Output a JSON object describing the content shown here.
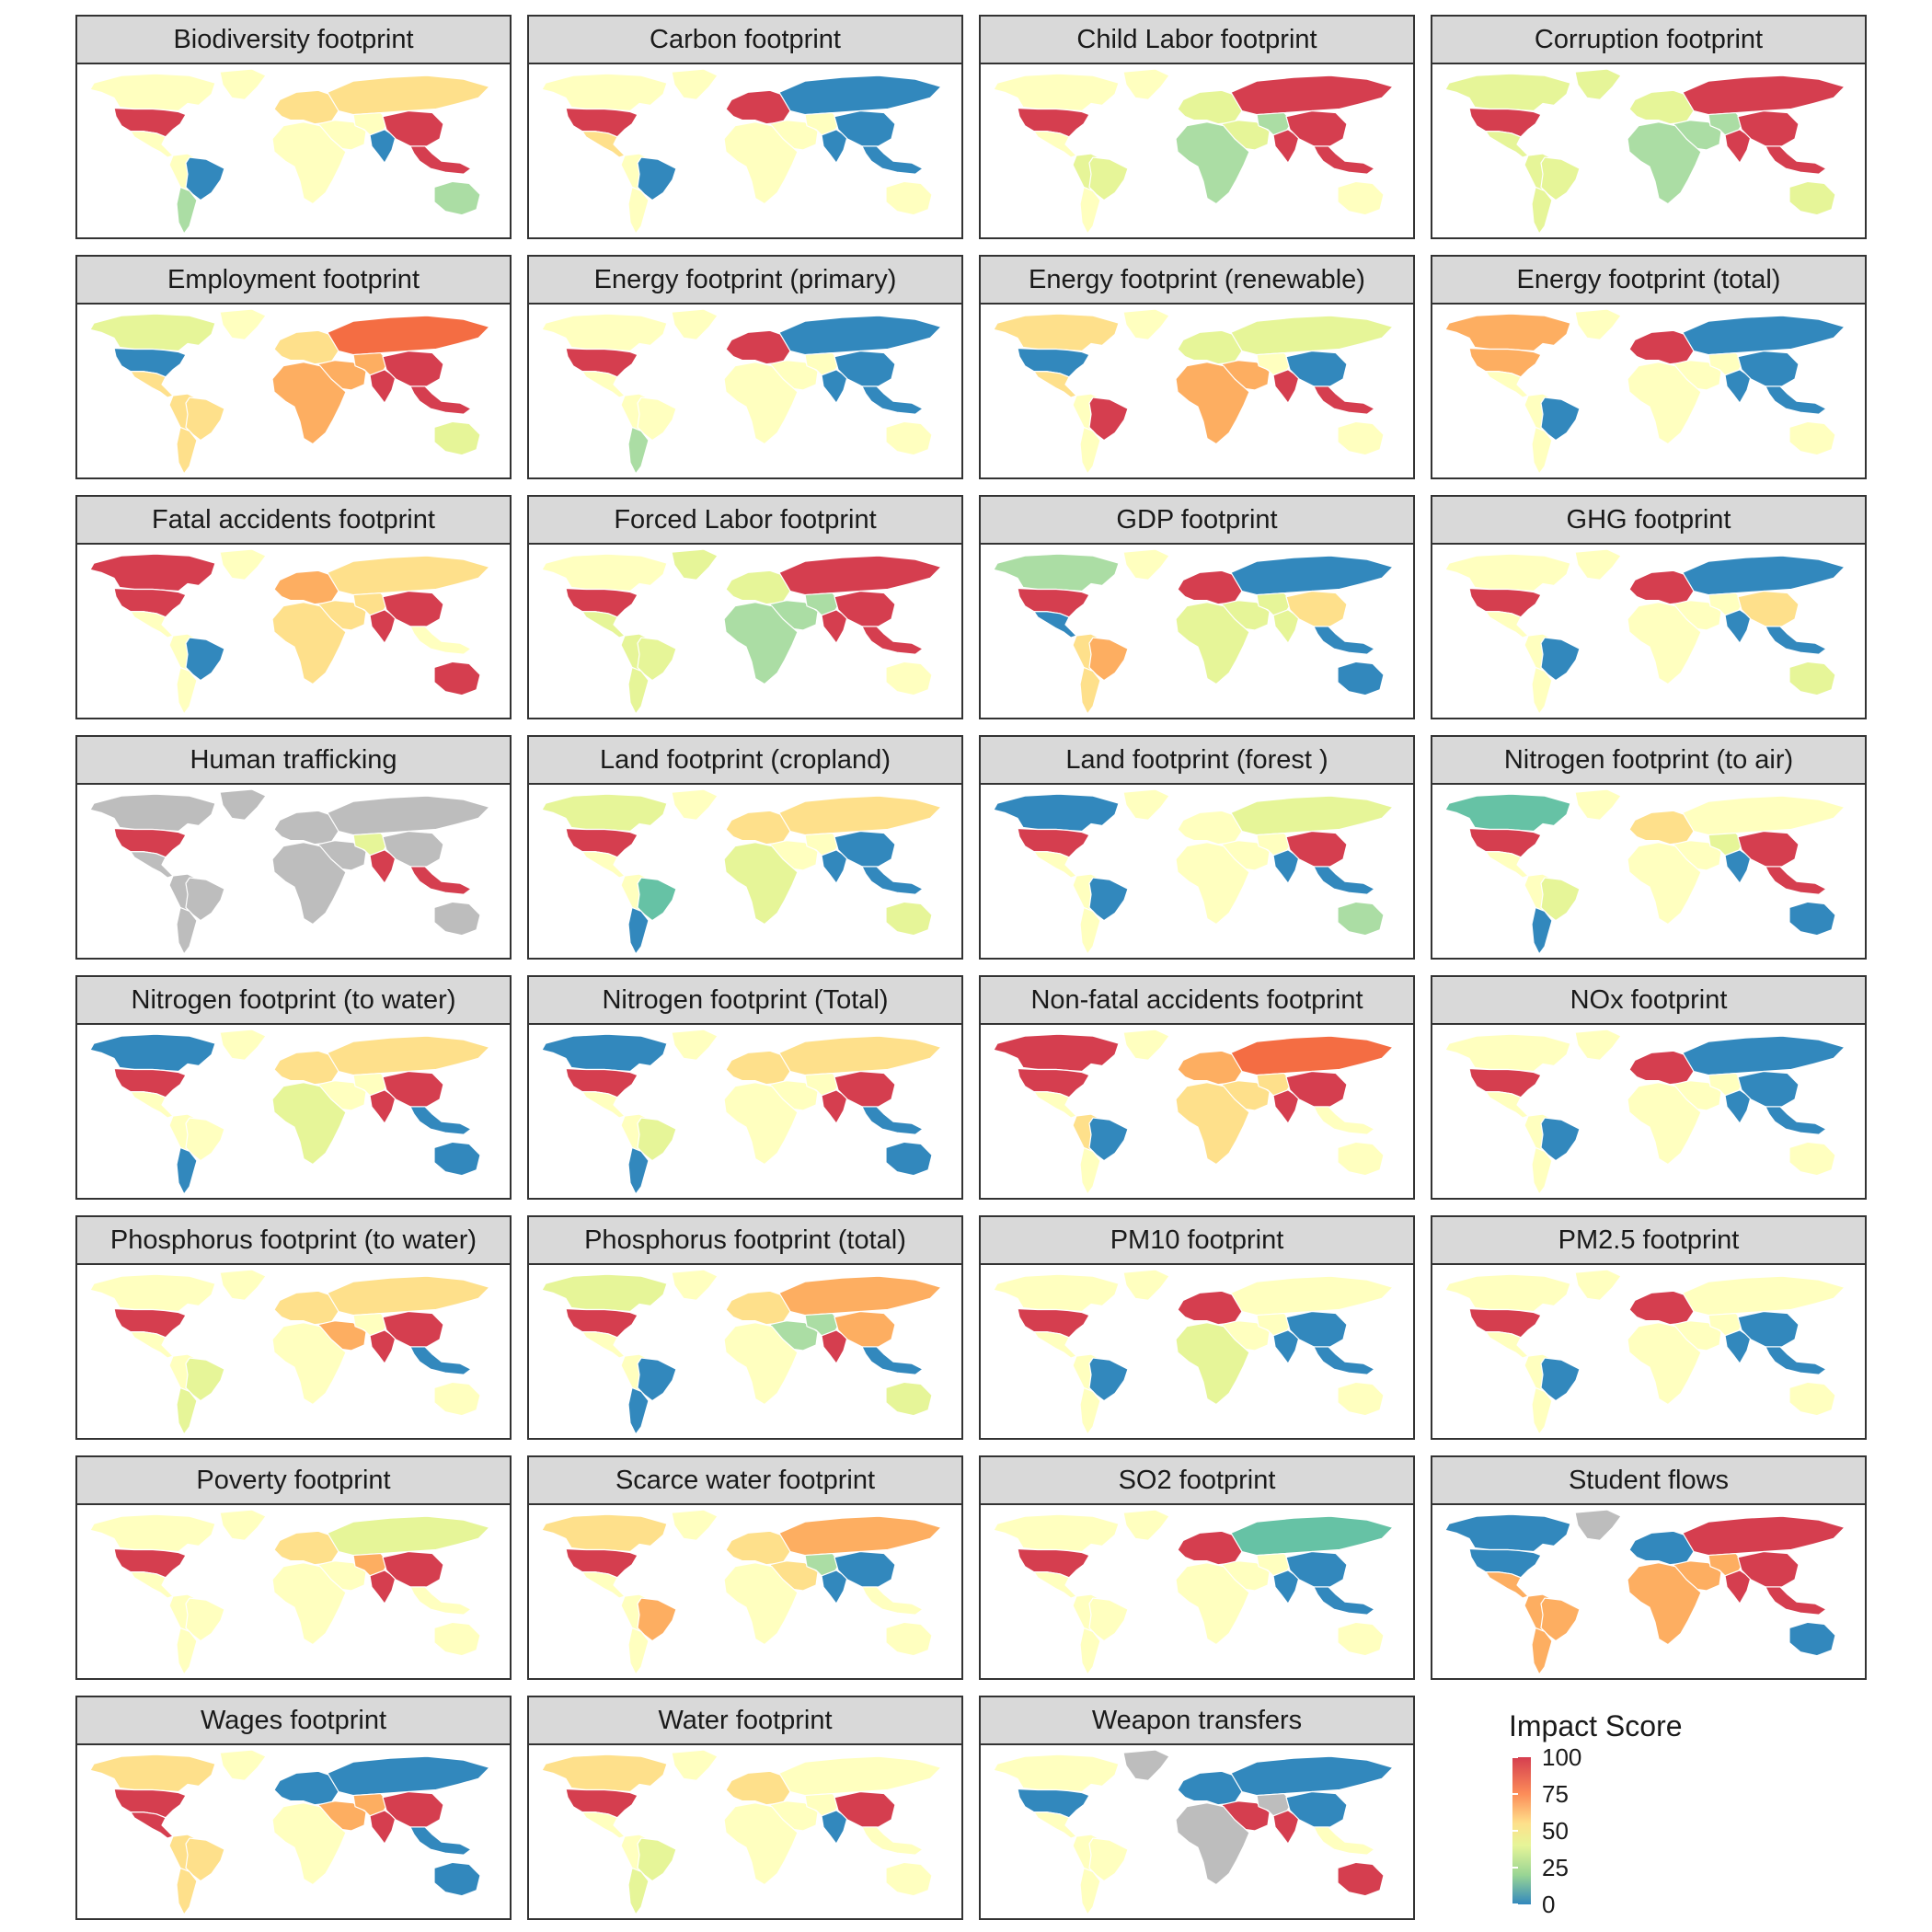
{
  "colors": {
    "red": "#d53e4f",
    "orange_red": "#f46d43",
    "orange": "#fdae61",
    "light_orange": "#fee08b",
    "cream": "#ffffbf",
    "light_green": "#e6f598",
    "green": "#abdda4",
    "teal": "#66c2a5",
    "blue": "#3288bd",
    "grey": "#bdbdbd"
  },
  "panels": [
    {
      "title": "Biodiversity footprint",
      "regions": {
        "north_america": "cream",
        "usa": "red",
        "central_america": "cream",
        "south_america": "cream",
        "brazil": "blue",
        "argentina": "green",
        "europe": "light_orange",
        "russia": "light_orange",
        "middle_east": "cream",
        "africa": "cream",
        "south_asia": "cream",
        "india": "blue",
        "china": "red",
        "southeast_asia": "red",
        "australia": "green",
        "greenland": "cream"
      }
    },
    {
      "title": "Carbon footprint",
      "regions": {
        "north_america": "cream",
        "usa": "red",
        "central_america": "light_orange",
        "south_america": "cream",
        "brazil": "blue",
        "argentina": "cream",
        "europe": "red",
        "russia": "blue",
        "middle_east": "cream",
        "africa": "cream",
        "south_asia": "cream",
        "india": "blue",
        "china": "blue",
        "southeast_asia": "blue",
        "australia": "cream",
        "greenland": "cream"
      }
    },
    {
      "title": "Child Labor footprint",
      "regions": {
        "north_america": "cream",
        "usa": "red",
        "central_america": "cream",
        "south_america": "light_green",
        "brazil": "light_green",
        "argentina": "cream",
        "europe": "light_green",
        "russia": "red",
        "middle_east": "light_green",
        "africa": "green",
        "south_asia": "green",
        "india": "red",
        "china": "red",
        "southeast_asia": "red",
        "australia": "cream",
        "greenland": "cream"
      }
    },
    {
      "title": "Corruption footprint",
      "regions": {
        "north_america": "light_green",
        "usa": "red",
        "central_america": "light_green",
        "south_america": "light_green",
        "brazil": "light_green",
        "argentina": "light_green",
        "europe": "light_green",
        "russia": "red",
        "middle_east": "green",
        "africa": "green",
        "south_asia": "green",
        "india": "red",
        "china": "red",
        "southeast_asia": "red",
        "australia": "light_green",
        "greenland": "light_green"
      }
    },
    {
      "title": "Employment footprint",
      "regions": {
        "north_america": "light_green",
        "usa": "blue",
        "central_america": "light_orange",
        "south_america": "light_orange",
        "brazil": "light_orange",
        "argentina": "light_orange",
        "europe": "light_orange",
        "russia": "orange_red",
        "middle_east": "orange",
        "africa": "orange",
        "south_asia": "orange",
        "india": "red",
        "china": "red",
        "southeast_asia": "red",
        "australia": "light_green",
        "greenland": "cream"
      }
    },
    {
      "title": "Energy footprint (primary)",
      "regions": {
        "north_america": "cream",
        "usa": "red",
        "central_america": "cream",
        "south_america": "cream",
        "brazil": "cream",
        "argentina": "green",
        "europe": "red",
        "russia": "blue",
        "middle_east": "cream",
        "africa": "cream",
        "south_asia": "cream",
        "india": "blue",
        "china": "blue",
        "southeast_asia": "blue",
        "australia": "cream",
        "greenland": "cream"
      }
    },
    {
      "title": "Energy footprint (renewable)",
      "regions": {
        "north_america": "light_orange",
        "usa": "blue",
        "central_america": "light_orange",
        "south_america": "cream",
        "brazil": "red",
        "argentina": "cream",
        "europe": "light_green",
        "russia": "light_green",
        "middle_east": "orange",
        "africa": "orange",
        "south_asia": "cream",
        "india": "red",
        "china": "blue",
        "southeast_asia": "red",
        "australia": "cream",
        "greenland": "cream"
      }
    },
    {
      "title": "Energy footprint (total)",
      "regions": {
        "north_america": "orange",
        "usa": "orange",
        "central_america": "cream",
        "south_america": "cream",
        "brazil": "blue",
        "argentina": "cream",
        "europe": "red",
        "russia": "blue",
        "middle_east": "cream",
        "africa": "cream",
        "south_asia": "cream",
        "india": "blue",
        "china": "blue",
        "southeast_asia": "blue",
        "australia": "cream",
        "greenland": "cream"
      }
    },
    {
      "title": "Fatal accidents footprint",
      "regions": {
        "north_america": "red",
        "usa": "red",
        "central_america": "cream",
        "south_america": "cream",
        "brazil": "blue",
        "argentina": "cream",
        "europe": "orange",
        "russia": "light_orange",
        "middle_east": "light_orange",
        "africa": "light_orange",
        "south_asia": "light_orange",
        "india": "red",
        "china": "red",
        "southeast_asia": "cream",
        "australia": "red",
        "greenland": "cream"
      }
    },
    {
      "title": "Forced Labor footprint",
      "regions": {
        "north_america": "cream",
        "usa": "red",
        "central_america": "light_green",
        "south_america": "light_green",
        "brazil": "light_green",
        "argentina": "light_green",
        "europe": "light_green",
        "russia": "red",
        "middle_east": "green",
        "africa": "green",
        "south_asia": "green",
        "india": "red",
        "china": "red",
        "southeast_asia": "red",
        "australia": "cream",
        "greenland": "light_green"
      }
    },
    {
      "title": "GDP footprint",
      "regions": {
        "north_america": "green",
        "usa": "red",
        "central_america": "blue",
        "south_america": "light_orange",
        "brazil": "orange",
        "argentina": "light_orange",
        "europe": "red",
        "russia": "blue",
        "middle_east": "light_green",
        "africa": "light_green",
        "south_asia": "light_green",
        "india": "light_green",
        "china": "light_orange",
        "southeast_asia": "blue",
        "australia": "blue",
        "greenland": "cream"
      }
    },
    {
      "title": "GHG footprint",
      "regions": {
        "north_america": "cream",
        "usa": "red",
        "central_america": "cream",
        "south_america": "cream",
        "brazil": "blue",
        "argentina": "cream",
        "europe": "red",
        "russia": "blue",
        "middle_east": "cream",
        "africa": "cream",
        "south_asia": "cream",
        "india": "blue",
        "china": "light_orange",
        "southeast_asia": "blue",
        "australia": "light_green",
        "greenland": "cream"
      }
    },
    {
      "title": "Human trafficking",
      "regions": {
        "north_america": "grey",
        "usa": "red",
        "central_america": "grey",
        "south_america": "grey",
        "brazil": "grey",
        "argentina": "grey",
        "europe": "grey",
        "russia": "grey",
        "middle_east": "grey",
        "africa": "grey",
        "south_asia": "light_green",
        "india": "red",
        "china": "grey",
        "southeast_asia": "red",
        "australia": "grey",
        "greenland": "grey"
      }
    },
    {
      "title": "Land footprint (cropland)",
      "regions": {
        "north_america": "light_green",
        "usa": "red",
        "central_america": "cream",
        "south_america": "cream",
        "brazil": "teal",
        "argentina": "blue",
        "europe": "light_orange",
        "russia": "light_orange",
        "middle_east": "cream",
        "africa": "light_green",
        "south_asia": "cream",
        "india": "blue",
        "china": "blue",
        "southeast_asia": "blue",
        "australia": "light_green",
        "greenland": "cream"
      }
    },
    {
      "title": "Land footprint (forest )",
      "regions": {
        "north_america": "blue",
        "usa": "red",
        "central_america": "cream",
        "south_america": "cream",
        "brazil": "blue",
        "argentina": "cream",
        "europe": "cream",
        "russia": "light_green",
        "middle_east": "cream",
        "africa": "cream",
        "south_asia": "cream",
        "india": "blue",
        "china": "red",
        "southeast_asia": "blue",
        "australia": "green",
        "greenland": "cream"
      }
    },
    {
      "title": "Nitrogen footprint (to air)",
      "regions": {
        "north_america": "teal",
        "usa": "red",
        "central_america": "cream",
        "south_america": "cream",
        "brazil": "light_green",
        "argentina": "blue",
        "europe": "light_orange",
        "russia": "cream",
        "middle_east": "cream",
        "africa": "cream",
        "south_asia": "light_green",
        "india": "blue",
        "china": "red",
        "southeast_asia": "red",
        "australia": "blue",
        "greenland": "cream"
      }
    },
    {
      "title": "Nitrogen footprint (to water)",
      "regions": {
        "north_america": "blue",
        "usa": "red",
        "central_america": "cream",
        "south_america": "cream",
        "brazil": "cream",
        "argentina": "blue",
        "europe": "light_orange",
        "russia": "light_orange",
        "middle_east": "cream",
        "africa": "light_green",
        "south_asia": "cream",
        "india": "red",
        "china": "red",
        "southeast_asia": "blue",
        "australia": "blue",
        "greenland": "cream"
      }
    },
    {
      "title": "Nitrogen footprint (Total)",
      "regions": {
        "north_america": "blue",
        "usa": "red",
        "central_america": "cream",
        "south_america": "cream",
        "brazil": "light_green",
        "argentina": "blue",
        "europe": "light_orange",
        "russia": "light_orange",
        "middle_east": "cream",
        "africa": "cream",
        "south_asia": "cream",
        "india": "red",
        "china": "red",
        "southeast_asia": "blue",
        "australia": "blue",
        "greenland": "cream"
      }
    },
    {
      "title": "Non-fatal accidents footprint",
      "regions": {
        "north_america": "red",
        "usa": "red",
        "central_america": "cream",
        "south_america": "light_orange",
        "brazil": "blue",
        "argentina": "cream",
        "europe": "orange",
        "russia": "orange_red",
        "middle_east": "light_orange",
        "africa": "light_orange",
        "south_asia": "light_orange",
        "india": "red",
        "china": "red",
        "southeast_asia": "cream",
        "australia": "cream",
        "greenland": "cream"
      }
    },
    {
      "title": "NOx footprint",
      "regions": {
        "north_america": "cream",
        "usa": "red",
        "central_america": "cream",
        "south_america": "cream",
        "brazil": "blue",
        "argentina": "cream",
        "europe": "red",
        "russia": "blue",
        "middle_east": "cream",
        "africa": "cream",
        "south_asia": "cream",
        "india": "blue",
        "china": "blue",
        "southeast_asia": "blue",
        "australia": "cream",
        "greenland": "cream"
      }
    },
    {
      "title": "Phosphorus footprint (to water)",
      "regions": {
        "north_america": "cream",
        "usa": "red",
        "central_america": "cream",
        "south_america": "cream",
        "brazil": "light_green",
        "argentina": "light_green",
        "europe": "light_orange",
        "russia": "light_orange",
        "middle_east": "orange",
        "africa": "cream",
        "south_asia": "cream",
        "india": "red",
        "china": "red",
        "southeast_asia": "blue",
        "australia": "cream",
        "greenland": "cream"
      }
    },
    {
      "title": "Phosphorus footprint (total)",
      "regions": {
        "north_america": "light_green",
        "usa": "red",
        "central_america": "cream",
        "south_america": "cream",
        "brazil": "blue",
        "argentina": "blue",
        "europe": "light_orange",
        "russia": "orange",
        "middle_east": "green",
        "africa": "cream",
        "south_asia": "green",
        "india": "red",
        "china": "orange",
        "southeast_asia": "blue",
        "australia": "light_green",
        "greenland": "cream"
      }
    },
    {
      "title": "PM10 footprint",
      "regions": {
        "north_america": "cream",
        "usa": "red",
        "central_america": "cream",
        "south_america": "cream",
        "brazil": "blue",
        "argentina": "cream",
        "europe": "red",
        "russia": "cream",
        "middle_east": "cream",
        "africa": "light_green",
        "south_asia": "cream",
        "india": "blue",
        "china": "blue",
        "southeast_asia": "blue",
        "australia": "cream",
        "greenland": "cream"
      }
    },
    {
      "title": "PM2.5 footprint",
      "regions": {
        "north_america": "cream",
        "usa": "red",
        "central_america": "cream",
        "south_america": "cream",
        "brazil": "blue",
        "argentina": "cream",
        "europe": "red",
        "russia": "cream",
        "middle_east": "cream",
        "africa": "cream",
        "south_asia": "cream",
        "india": "blue",
        "china": "blue",
        "southeast_asia": "blue",
        "australia": "cream",
        "greenland": "cream"
      }
    },
    {
      "title": "Poverty footprint",
      "regions": {
        "north_america": "cream",
        "usa": "red",
        "central_america": "cream",
        "south_america": "cream",
        "brazil": "cream",
        "argentina": "cream",
        "europe": "light_orange",
        "russia": "light_green",
        "middle_east": "cream",
        "africa": "cream",
        "south_asia": "orange",
        "india": "red",
        "china": "red",
        "southeast_asia": "cream",
        "australia": "cream",
        "greenland": "cream"
      }
    },
    {
      "title": "Scarce water footprint",
      "regions": {
        "north_america": "light_orange",
        "usa": "red",
        "central_america": "cream",
        "south_america": "cream",
        "brazil": "orange",
        "argentina": "cream",
        "europe": "light_orange",
        "russia": "orange",
        "middle_east": "light_orange",
        "africa": "cream",
        "south_asia": "green",
        "india": "blue",
        "china": "blue",
        "southeast_asia": "cream",
        "australia": "cream",
        "greenland": "cream"
      }
    },
    {
      "title": "SO2 footprint",
      "regions": {
        "north_america": "cream",
        "usa": "red",
        "central_america": "cream",
        "south_america": "cream",
        "brazil": "cream",
        "argentina": "cream",
        "europe": "red",
        "russia": "teal",
        "middle_east": "cream",
        "africa": "cream",
        "south_asia": "cream",
        "india": "blue",
        "china": "blue",
        "southeast_asia": "blue",
        "australia": "cream",
        "greenland": "cream"
      }
    },
    {
      "title": "Student flows",
      "regions": {
        "north_america": "blue",
        "usa": "blue",
        "central_america": "orange",
        "south_america": "orange",
        "brazil": "orange",
        "argentina": "orange",
        "europe": "blue",
        "russia": "red",
        "middle_east": "orange",
        "africa": "orange",
        "south_asia": "orange",
        "india": "red",
        "china": "red",
        "southeast_asia": "red",
        "australia": "blue",
        "greenland": "grey"
      }
    },
    {
      "title": "Wages footprint",
      "regions": {
        "north_america": "light_orange",
        "usa": "red",
        "central_america": "red",
        "south_america": "light_orange",
        "brazil": "light_orange",
        "argentina": "light_orange",
        "europe": "blue",
        "russia": "blue",
        "middle_east": "orange",
        "africa": "cream",
        "south_asia": "orange",
        "india": "red",
        "china": "red",
        "southeast_asia": "blue",
        "australia": "blue",
        "greenland": "cream"
      }
    },
    {
      "title": "Water footprint",
      "regions": {
        "north_america": "light_orange",
        "usa": "red",
        "central_america": "cream",
        "south_america": "cream",
        "brazil": "light_green",
        "argentina": "light_green",
        "europe": "light_orange",
        "russia": "cream",
        "middle_east": "cream",
        "africa": "cream",
        "south_asia": "cream",
        "india": "blue",
        "china": "red",
        "southeast_asia": "cream",
        "australia": "cream",
        "greenland": "cream"
      }
    },
    {
      "title": "Weapon transfers",
      "regions": {
        "north_america": "cream",
        "usa": "blue",
        "central_america": "cream",
        "south_america": "cream",
        "brazil": "cream",
        "argentina": "cream",
        "europe": "blue",
        "russia": "blue",
        "middle_east": "red",
        "africa": "grey",
        "south_asia": "grey",
        "india": "red",
        "china": "blue",
        "southeast_asia": "cream",
        "australia": "red",
        "greenland": "grey"
      }
    }
  ],
  "legend": {
    "title": "Impact Score",
    "ticks": [
      {
        "label": "100",
        "value": 100
      },
      {
        "label": "75",
        "value": 75
      },
      {
        "label": "50",
        "value": 50
      },
      {
        "label": "25",
        "value": 25
      },
      {
        "label": "0",
        "value": 0
      }
    ]
  }
}
